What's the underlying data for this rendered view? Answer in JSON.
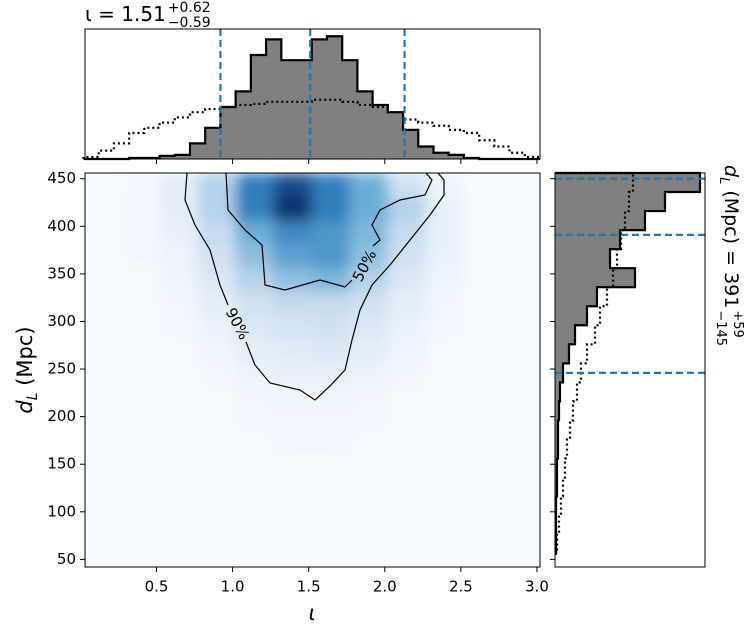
{
  "chart_data": [
    {
      "type": "histogram",
      "panel": "top",
      "title": {
        "text": "ι = 1.51",
        "upper": "+0.62",
        "lower": "−0.59"
      },
      "bins": [
        0.02,
        0.12,
        0.22,
        0.32,
        0.42,
        0.52,
        0.62,
        0.72,
        0.82,
        0.92,
        1.02,
        1.12,
        1.22,
        1.32,
        1.42,
        1.52,
        1.62,
        1.72,
        1.82,
        1.92,
        2.02,
        2.12,
        2.22,
        2.32,
        2.42,
        2.52,
        2.62,
        2.72,
        2.82,
        2.92,
        3.02
      ],
      "series": [
        {
          "name": "posterior",
          "color": "#808080",
          "values": [
            0,
            0,
            0,
            1,
            1,
            3,
            4,
            15,
            30,
            50,
            65,
            100,
            115,
            95,
            95,
            115,
            118,
            95,
            65,
            52,
            45,
            28,
            12,
            6,
            4,
            1,
            0,
            0,
            0,
            0
          ]
        },
        {
          "name": "prior",
          "color": "#000000",
          "values": [
            2,
            8,
            15,
            25,
            30,
            35,
            40,
            45,
            48,
            50,
            52,
            53,
            55,
            55,
            55,
            57,
            57,
            55,
            52,
            50,
            45,
            38,
            35,
            32,
            28,
            25,
            18,
            12,
            6,
            2
          ]
        }
      ],
      "quantiles": [
        0.92,
        1.51,
        2.13
      ],
      "quantile_color": "#1f77b4",
      "xlim": [
        0.03,
        3.02
      ],
      "ylim": [
        0,
        125
      ]
    },
    {
      "type": "heatmap",
      "panel": "main",
      "xlabel": "ι",
      "ylabel": {
        "text": "d",
        "sub": "L",
        "rest": " (Mpc)"
      },
      "x_edges": [
        0.02,
        0.27,
        0.52,
        0.77,
        1.02,
        1.27,
        1.52,
        1.77,
        2.02,
        2.27,
        2.52,
        2.77,
        3.02
      ],
      "y_edges": [
        456,
        431,
        406,
        381,
        356,
        331,
        306,
        281,
        256,
        231,
        206,
        181,
        156,
        131,
        106,
        81,
        56
      ],
      "values": [
        [
          0,
          0.02,
          0.1,
          0.3,
          0.7,
          0.9,
          0.7,
          0.5,
          0.2,
          0.05,
          0,
          0
        ],
        [
          0,
          0.02,
          0.1,
          0.3,
          0.7,
          1.0,
          0.7,
          0.5,
          0.3,
          0.08,
          0.01,
          0
        ],
        [
          0,
          0.02,
          0.08,
          0.25,
          0.5,
          0.65,
          0.6,
          0.45,
          0.25,
          0.08,
          0.01,
          0
        ],
        [
          0,
          0.02,
          0.06,
          0.2,
          0.4,
          0.55,
          0.6,
          0.4,
          0.2,
          0.07,
          0.01,
          0
        ],
        [
          0,
          0.01,
          0.05,
          0.15,
          0.3,
          0.4,
          0.45,
          0.3,
          0.15,
          0.05,
          0.01,
          0
        ],
        [
          0,
          0.01,
          0.03,
          0.1,
          0.2,
          0.25,
          0.25,
          0.2,
          0.1,
          0.03,
          0,
          0
        ],
        [
          0,
          0,
          0.02,
          0.07,
          0.15,
          0.18,
          0.2,
          0.15,
          0.07,
          0.02,
          0,
          0
        ],
        [
          0,
          0,
          0.01,
          0.04,
          0.1,
          0.12,
          0.15,
          0.1,
          0.05,
          0.01,
          0,
          0
        ],
        [
          0,
          0,
          0.01,
          0.02,
          0.06,
          0.08,
          0.08,
          0.06,
          0.03,
          0.01,
          0,
          0
        ],
        [
          0,
          0,
          0,
          0.01,
          0.03,
          0.04,
          0.04,
          0.03,
          0.01,
          0,
          0,
          0
        ],
        [
          0,
          0,
          0,
          0.01,
          0.02,
          0.03,
          0.03,
          0.02,
          0.01,
          0,
          0,
          0
        ],
        [
          0,
          0,
          0,
          0,
          0.01,
          0.02,
          0.02,
          0.01,
          0,
          0,
          0,
          0
        ],
        [
          0,
          0,
          0,
          0,
          0.01,
          0.01,
          0.01,
          0.01,
          0,
          0,
          0,
          0
        ],
        [
          0,
          0,
          0,
          0,
          0,
          0.01,
          0.01,
          0,
          0,
          0,
          0,
          0
        ],
        [
          0,
          0,
          0,
          0,
          0,
          0.01,
          0.01,
          0,
          0,
          0,
          0,
          0
        ],
        [
          0,
          0,
          0,
          0,
          0,
          0,
          0,
          0,
          0,
          0,
          0,
          0
        ]
      ],
      "colormap": [
        "#f7fbff",
        "#c6dbef",
        "#6baed6",
        "#2171b5",
        "#08306b"
      ],
      "contour_labels": [
        "50%",
        "90%"
      ],
      "xlim": [
        0.03,
        3.02
      ],
      "ylim": [
        42,
        456
      ],
      "xticks": [
        0.5,
        {
          "value": 1,
          "label": "1.0"
        },
        1.5,
        {
          "value": 2,
          "label": "2.0"
        },
        2.5,
        {
          "value": 3,
          "label": "3.0"
        }
      ],
      "yticks": [
        50,
        100,
        150,
        200,
        250,
        300,
        350,
        400,
        450
      ]
    },
    {
      "type": "histogram",
      "panel": "right",
      "orientation": "horizontal",
      "title": {
        "text": "d",
        "sub": "L",
        "rest": " (Mpc) = 391",
        "upper": "+59",
        "lower": "−145"
      },
      "bins": [
        56,
        76,
        96,
        116,
        136,
        156,
        176,
        196,
        216,
        236,
        256,
        276,
        296,
        316,
        336,
        356,
        376,
        396,
        416,
        436,
        456
      ],
      "series": [
        {
          "name": "posterior",
          "color": "#808080",
          "values": [
            1,
            1,
            1,
            2,
            2,
            3,
            3,
            4,
            5,
            8,
            14,
            20,
            32,
            42,
            80,
            55,
            65,
            90,
            110,
            145
          ]
        },
        {
          "name": "prior",
          "color": "#000000",
          "values": [
            2,
            4,
            6,
            8,
            10,
            12,
            15,
            18,
            22,
            26,
            32,
            40,
            45,
            52,
            58,
            62,
            66,
            70,
            74,
            78
          ]
        }
      ],
      "quantiles": [
        246,
        391,
        450
      ],
      "quantile_color": "#1f77b4",
      "xlim": [
        0,
        150
      ],
      "ylim": [
        42,
        456
      ]
    }
  ]
}
